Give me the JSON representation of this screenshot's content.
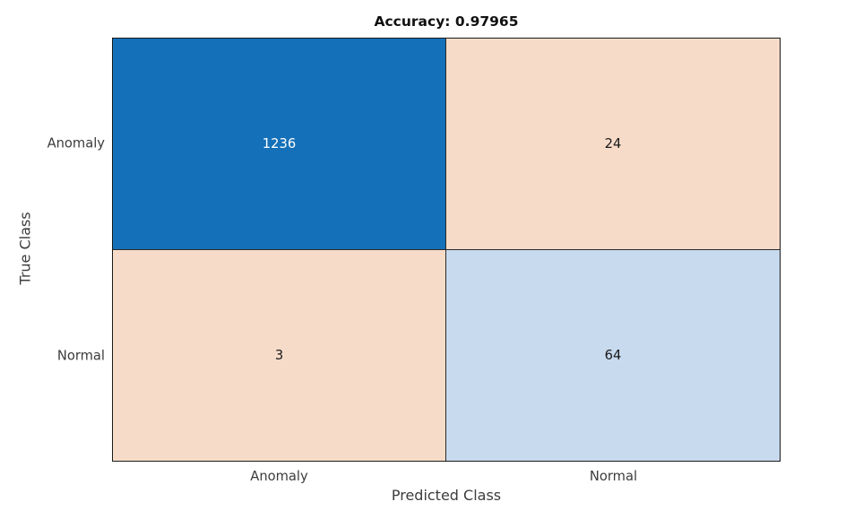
{
  "chart_data": {
    "type": "heatmap",
    "subtype": "confusion-matrix",
    "title": "Accuracy: 0.97965",
    "xlabel": "Predicted Class",
    "ylabel": "True Class",
    "x_categories": [
      "Anomaly",
      "Normal"
    ],
    "y_categories": [
      "Anomaly",
      "Normal"
    ],
    "matrix": [
      [
        1236,
        24
      ],
      [
        3,
        64
      ]
    ],
    "cell_colors": [
      [
        "#1470b8",
        "#f6dcc8"
      ],
      [
        "#f6dcc8",
        "#c8daee"
      ]
    ],
    "value_colors": [
      [
        "#ffffff",
        "#1a1a1a"
      ],
      [
        "#1a1a1a",
        "#1a1a1a"
      ]
    ],
    "grid": "on",
    "legend": "none"
  }
}
